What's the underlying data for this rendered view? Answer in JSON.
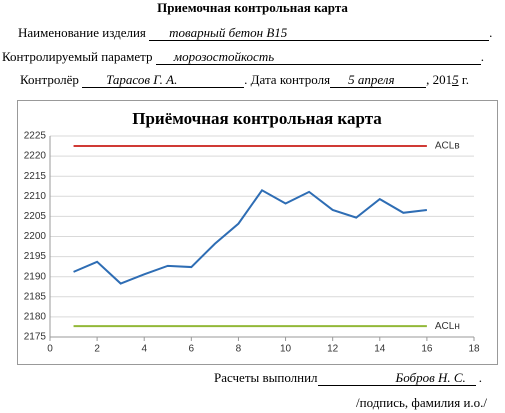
{
  "header": {
    "title": "Приемочная контрольная карта"
  },
  "fields": {
    "product_label": "Наименование изделия",
    "product_value": "товарный бетон  В15",
    "parameter_label": "Контролируемый параметр",
    "parameter_value": "морозостойкость",
    "controller_label": "Контролёр",
    "controller_value": "Тарасов Г. А.",
    "date_label": "Дата контроля",
    "date_value": "5  апреля",
    "year_prefix": "201",
    "year_suffix": "5",
    "year_unit": "г."
  },
  "chart_data": {
    "type": "line",
    "title": "Приёмочная контрольная карта",
    "x": [
      1,
      2,
      3,
      4,
      5,
      6,
      7,
      8,
      9,
      10,
      11,
      12,
      13,
      14,
      15,
      16
    ],
    "series": [
      {
        "color": "#2e6db4",
        "values": [
          2191.2,
          2193.7,
          2188.3,
          2190.6,
          2192.7,
          2192.4,
          2198.2,
          2203.2,
          2211.5,
          2208.2,
          2211.1,
          2206.6,
          2204.7,
          2209.3,
          2205.9,
          2206.6
        ]
      },
      {
        "name": "ACLв",
        "color": "#d03a35",
        "values": [
          2222.5,
          2222.5,
          2222.5,
          2222.5,
          2222.5,
          2222.5,
          2222.5,
          2222.5,
          2222.5,
          2222.5,
          2222.5,
          2222.5,
          2222.5,
          2222.5,
          2222.5,
          2222.5
        ]
      },
      {
        "name": "ACLн",
        "color": "#92b838",
        "values": [
          2177.7,
          2177.7,
          2177.7,
          2177.7,
          2177.7,
          2177.7,
          2177.7,
          2177.7,
          2177.7,
          2177.7,
          2177.7,
          2177.7,
          2177.7,
          2177.7,
          2177.7,
          2177.7
        ]
      }
    ],
    "xlim": [
      0,
      18
    ],
    "xticks": [
      0,
      2,
      4,
      6,
      8,
      10,
      12,
      14,
      16,
      18
    ],
    "ylim": [
      2175,
      2225
    ],
    "yticks": [
      2175,
      2180,
      2185,
      2190,
      2195,
      2200,
      2205,
      2210,
      2215,
      2220,
      2225
    ],
    "grid": true
  },
  "footer": {
    "calc_label": "Расчеты выполнил",
    "calc_value": "Бобров Н. С.",
    "signature_note": "/подпись, фамилия и.о./"
  }
}
